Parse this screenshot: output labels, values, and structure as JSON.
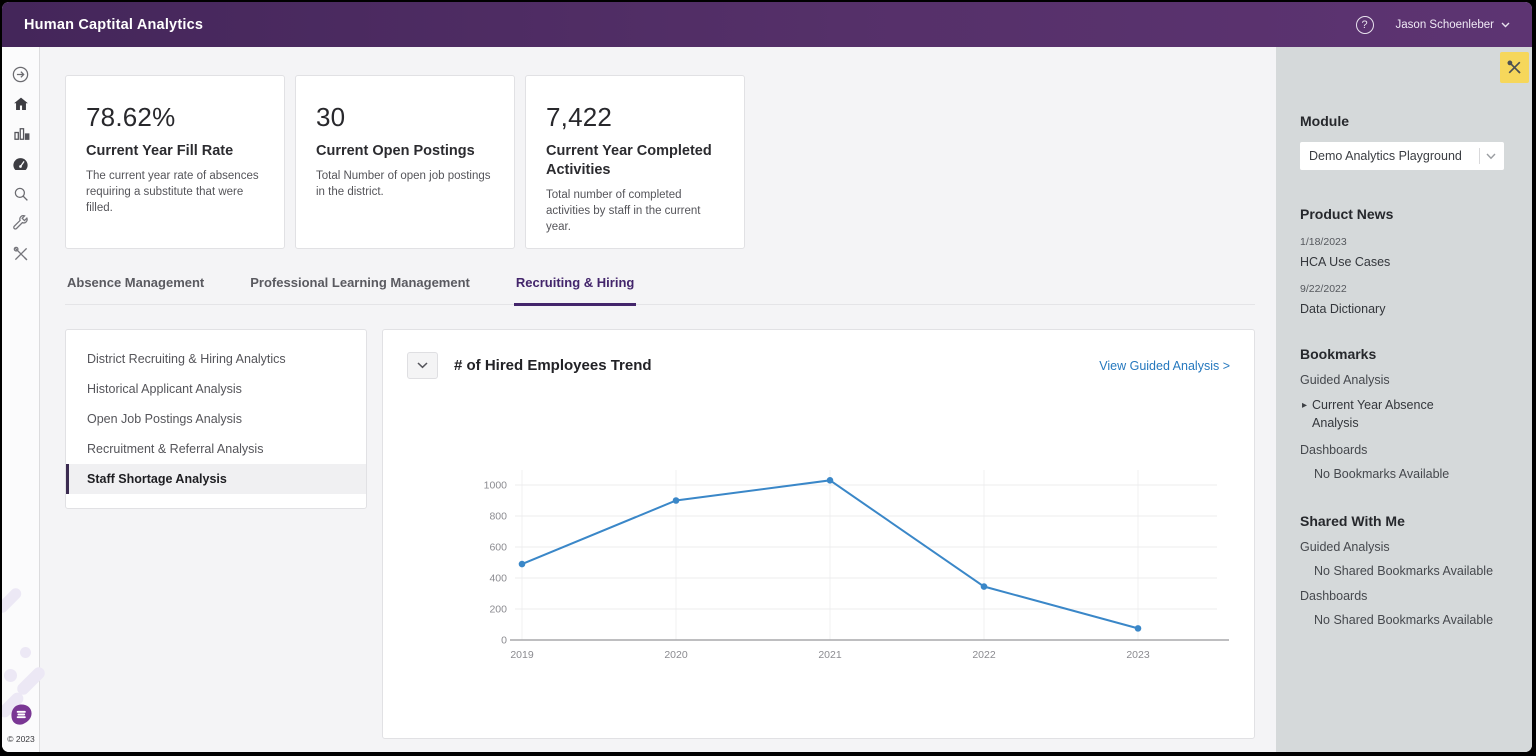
{
  "topbar": {
    "title": "Human Captital Analytics",
    "help_label": "?",
    "user_name": "Jason Schoenleber"
  },
  "sidebar": {
    "icons": [
      "collapse-toggle",
      "home",
      "reports-bar-chart",
      "dashboard-gauge",
      "search",
      "settings-wrench",
      "admin-tools"
    ],
    "copyright": "© 2023"
  },
  "kpis": [
    {
      "value": "78.62%",
      "label": "Current Year Fill Rate",
      "description": "The current year rate of absences requiring a substitute that were filled."
    },
    {
      "value": "30",
      "label": "Current Open Postings",
      "description": "Total Number of open job postings in the district."
    },
    {
      "value": "7,422",
      "label": "Current Year Completed Activities",
      "description": "Total number of completed activities by staff in the current year."
    }
  ],
  "tabs": {
    "items": [
      "Absence Management",
      "Professional Learning Management",
      "Recruiting & Hiring"
    ],
    "active": "Recruiting & Hiring"
  },
  "subnav": {
    "items": [
      "District Recruiting & Hiring Analytics",
      "Historical Applicant Analysis",
      "Open Job Postings Analysis",
      "Recruitment & Referral Analysis",
      "Staff Shortage Analysis"
    ],
    "selected": "Staff Shortage Analysis"
  },
  "chart": {
    "title": "# of Hired Employees Trend",
    "link": "View Guided Analysis >"
  },
  "chart_data": {
    "type": "line",
    "title": "# of Hired Employees Trend",
    "x": [
      "2019",
      "2020",
      "2021",
      "2022",
      "2023"
    ],
    "values": [
      490,
      900,
      1030,
      345,
      75
    ],
    "yticks": [
      0,
      200,
      400,
      600,
      800,
      1000
    ],
    "ylim": [
      0,
      1100
    ],
    "xlabel": "",
    "ylabel": "",
    "grid": true,
    "legend": "none",
    "line_color": "#3a87c8"
  },
  "right_panel": {
    "module": {
      "label": "Module",
      "value": "Demo Analytics Playground"
    },
    "product_news": {
      "title": "Product News",
      "items": [
        {
          "date": "1/18/2023",
          "title": "HCA Use Cases"
        },
        {
          "date": "9/22/2022",
          "title": "Data Dictionary"
        }
      ]
    },
    "bookmarks": {
      "title": "Bookmarks",
      "guided_label": "Guided Analysis",
      "guided_item": "Current Year Absence Analysis",
      "dashboards_label": "Dashboards",
      "dashboards_empty": "No Bookmarks Available"
    },
    "shared": {
      "title": "Shared With Me",
      "guided_label": "Guided Analysis",
      "guided_empty": "No Shared Bookmarks Available",
      "dashboards_label": "Dashboards",
      "dashboards_empty": "No Shared Bookmarks Available"
    }
  },
  "colors": {
    "topbar_purple": "#4e2b60",
    "accent_purple": "#43256b",
    "link_blue": "#2578be",
    "chart_line_blue": "#3a87c8",
    "tools_yellow": "#f6d75b",
    "panel_gray": "#d5d9da"
  }
}
